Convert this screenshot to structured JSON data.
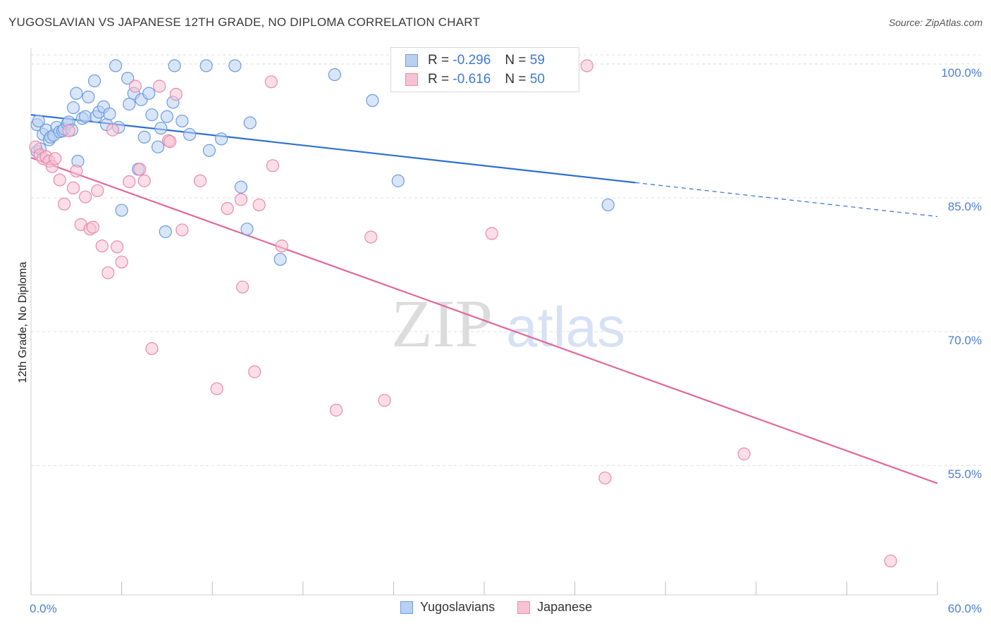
{
  "title": "YUGOSLAVIAN VS JAPANESE 12TH GRADE, NO DIPLOMA CORRELATION CHART",
  "source": "Source: ZipAtlas.com",
  "watermark": {
    "zip": "ZIP",
    "atlas": "atlas"
  },
  "legend": {
    "row1": {
      "r_label": "R =",
      "r_value": "-0.296",
      "n_label": "N =",
      "n_value": "59"
    },
    "row2": {
      "r_label": "R =",
      "r_value": "-0.616",
      "n_label": "N =",
      "n_value": "50"
    }
  },
  "bottom_legend": {
    "series1": "Yugoslavians",
    "series2": "Japanese"
  },
  "colors": {
    "blue_fill": "#b9d0f2",
    "blue_stroke": "#6b9ce0",
    "blue_line": "#2f6fcf",
    "pink_fill": "#f7c3d4",
    "pink_stroke": "#e98aab",
    "pink_line": "#e0689a",
    "tick_text": "#4a7fd0",
    "grid": "#dddddd"
  },
  "chart_data": {
    "type": "scatter",
    "title": "YUGOSLAVIAN VS JAPANESE 12TH GRADE, NO DIPLOMA CORRELATION CHART",
    "xlabel": "",
    "ylabel": "12th Grade, No Diploma",
    "xlim": [
      0,
      60
    ],
    "ylim": [
      40.5,
      101.8
    ],
    "x_tick_labels": [
      "0.0%",
      "60.0%"
    ],
    "y_ticks": [
      {
        "value": 100,
        "label": "100.0%"
      },
      {
        "value": 85,
        "label": "85.0%"
      },
      {
        "value": 70,
        "label": "70.0%"
      },
      {
        "value": 55,
        "label": "55.0%"
      }
    ],
    "grid": true,
    "series": [
      {
        "name": "Yugoslavians",
        "r": -0.296,
        "n": 59,
        "trend": {
          "x0": 0,
          "y0": 94.3,
          "x1": 40,
          "y1": 86.7,
          "dashed_to_x": 60,
          "dashed_to_y": 82.9
        },
        "points": [
          [
            0.4,
            93.2
          ],
          [
            0.5,
            93.6
          ],
          [
            0.8,
            92.1
          ],
          [
            1.0,
            92.6
          ],
          [
            1.2,
            91.5
          ],
          [
            1.3,
            91.8
          ],
          [
            1.5,
            92.0
          ],
          [
            1.7,
            92.9
          ],
          [
            1.9,
            92.4
          ],
          [
            2.1,
            92.5
          ],
          [
            2.2,
            92.7
          ],
          [
            2.4,
            93.3
          ],
          [
            2.5,
            93.5
          ],
          [
            2.7,
            92.6
          ],
          [
            2.8,
            95.1
          ],
          [
            3.0,
            96.7
          ],
          [
            3.1,
            89.1
          ],
          [
            3.4,
            93.9
          ],
          [
            3.6,
            94.1
          ],
          [
            3.8,
            96.3
          ],
          [
            4.2,
            98.1
          ],
          [
            4.3,
            94.1
          ],
          [
            4.5,
            94.6
          ],
          [
            4.8,
            95.2
          ],
          [
            5.0,
            93.2
          ],
          [
            5.2,
            94.4
          ],
          [
            5.6,
            99.8
          ],
          [
            5.8,
            92.9
          ],
          [
            6.0,
            83.6
          ],
          [
            6.4,
            98.4
          ],
          [
            6.5,
            95.5
          ],
          [
            6.8,
            96.7
          ],
          [
            7.1,
            88.2
          ],
          [
            7.3,
            96.0
          ],
          [
            7.5,
            91.8
          ],
          [
            7.8,
            96.7
          ],
          [
            8.0,
            94.3
          ],
          [
            8.4,
            90.7
          ],
          [
            8.6,
            92.8
          ],
          [
            8.9,
            81.2
          ],
          [
            9.0,
            94.1
          ],
          [
            9.4,
            95.7
          ],
          [
            9.5,
            99.8
          ],
          [
            10.0,
            93.6
          ],
          [
            10.5,
            92.1
          ],
          [
            11.6,
            99.8
          ],
          [
            11.8,
            90.3
          ],
          [
            12.6,
            91.6
          ],
          [
            13.5,
            99.8
          ],
          [
            13.9,
            86.2
          ],
          [
            14.3,
            81.5
          ],
          [
            14.5,
            93.4
          ],
          [
            16.5,
            78.1
          ],
          [
            20.1,
            98.8
          ],
          [
            22.6,
            95.9
          ],
          [
            24.3,
            86.9
          ],
          [
            38.2,
            84.2
          ],
          [
            0.4,
            90.2
          ],
          [
            0.6,
            90.5
          ]
        ]
      },
      {
        "name": "Japanese",
        "r": -0.616,
        "n": 50,
        "trend": {
          "x0": 0,
          "y0": 89.5,
          "x1": 60,
          "y1": 53.0
        },
        "points": [
          [
            0.3,
            90.7
          ],
          [
            0.6,
            89.8
          ],
          [
            0.8,
            89.4
          ],
          [
            1.0,
            89.6
          ],
          [
            1.2,
            89.1
          ],
          [
            1.4,
            88.5
          ],
          [
            1.6,
            89.4
          ],
          [
            1.9,
            87.0
          ],
          [
            2.2,
            84.3
          ],
          [
            2.5,
            92.5
          ],
          [
            2.8,
            86.1
          ],
          [
            3.0,
            88.0
          ],
          [
            3.3,
            82.0
          ],
          [
            3.6,
            85.1
          ],
          [
            3.9,
            81.5
          ],
          [
            4.1,
            81.7
          ],
          [
            4.4,
            85.8
          ],
          [
            4.7,
            79.6
          ],
          [
            5.1,
            76.6
          ],
          [
            5.4,
            92.6
          ],
          [
            5.7,
            79.5
          ],
          [
            6.0,
            77.8
          ],
          [
            6.5,
            86.8
          ],
          [
            6.9,
            97.5
          ],
          [
            7.2,
            88.2
          ],
          [
            7.5,
            86.9
          ],
          [
            8.0,
            68.1
          ],
          [
            8.5,
            97.5
          ],
          [
            9.1,
            91.4
          ],
          [
            9.2,
            91.3
          ],
          [
            9.6,
            96.6
          ],
          [
            10.0,
            81.4
          ],
          [
            11.2,
            86.9
          ],
          [
            12.3,
            63.6
          ],
          [
            13.0,
            83.8
          ],
          [
            13.9,
            84.8
          ],
          [
            14.0,
            75.0
          ],
          [
            14.8,
            65.5
          ],
          [
            15.1,
            84.2
          ],
          [
            15.9,
            98.0
          ],
          [
            16.0,
            88.6
          ],
          [
            16.6,
            79.6
          ],
          [
            20.2,
            61.2
          ],
          [
            22.5,
            80.6
          ],
          [
            23.4,
            62.3
          ],
          [
            30.5,
            81.0
          ],
          [
            36.8,
            99.8
          ],
          [
            38.0,
            53.6
          ],
          [
            47.2,
            56.3
          ],
          [
            56.9,
            44.3
          ]
        ]
      }
    ]
  }
}
